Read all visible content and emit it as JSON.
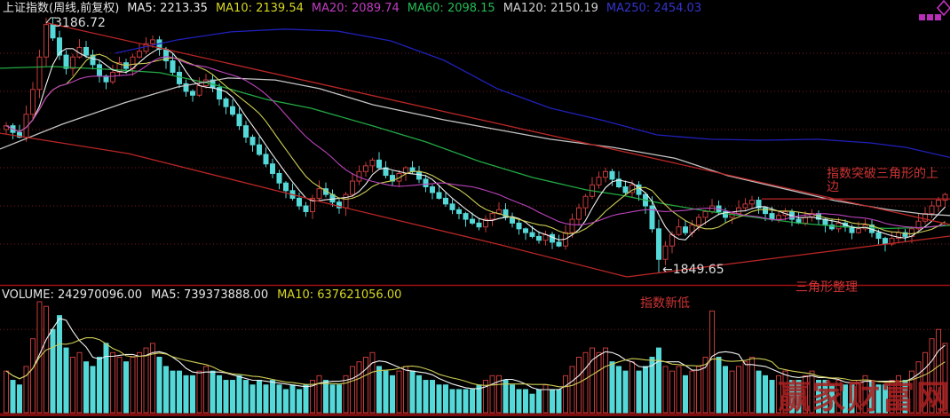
{
  "header": {
    "title": "上证指数(周线,前复权)",
    "ma_labels": [
      {
        "text": "MA5: 2213.35",
        "color": "#e6e6e6"
      },
      {
        "text": "MA10: 2139.54",
        "color": "#d6d622"
      },
      {
        "text": "MA20: 2089.74",
        "color": "#c03cc0"
      },
      {
        "text": "MA60: 2098.15",
        "color": "#22bb55"
      },
      {
        "text": "MA120: 2150.19",
        "color": "#cfcfcf"
      },
      {
        "text": "MA250: 2454.03",
        "color": "#3434cc"
      }
    ]
  },
  "volume_header": {
    "items": [
      {
        "text": "VOLUME: 242970096.00",
        "color": "#e6e6e6"
      },
      {
        "text": "MA5: 739373888.00",
        "color": "#e6e6e6"
      },
      {
        "text": "MA10: 637621056.00",
        "color": "#d6d622"
      }
    ]
  },
  "labels": {
    "peak": {
      "text": "3186.72"
    },
    "low": {
      "text": "←1849.65"
    }
  },
  "annotations": {
    "breakout": {
      "text": "指数突破三角形的上边"
    },
    "triangle": {
      "text": "三角形整理"
    },
    "new_low": {
      "text": "指数新低"
    }
  },
  "watermark": {
    "text": "赢家财富网"
  },
  "colors": {
    "up": "#c43a3a",
    "down": "#55d8d8",
    "white_ma": "#f0f0f0",
    "yellow_ma": "#cccc55",
    "magenta_ma": "#bb44bb",
    "green_ma": "#22aa44",
    "gray_ma": "#c4c4c4",
    "blue_ma": "#2020bb",
    "trend": "#bb2626",
    "grid": "#7a1a1a",
    "separator": "#a01010",
    "axis_bar": "#7a0d0d",
    "logo": "#cc33cc"
  },
  "chart_data": {
    "type": "candlestick+volume",
    "title": "上证指数(周线,前复权)",
    "legend": [
      "MA5",
      "MA10",
      "MA20",
      "MA60",
      "MA120",
      "MA250"
    ],
    "grid": "dotted horizontal",
    "price_axis": {
      "top_value": 3195,
      "bottom_value": 1777,
      "gridline_prices": [
        3000,
        2800,
        2600,
        2400,
        2200,
        2000
      ]
    },
    "key_points": [
      {
        "index": 6,
        "high": 3186.72,
        "label": "3186.72"
      },
      {
        "index": 98,
        "low": 1849.65,
        "label": "←1849.65"
      }
    ],
    "closes": [
      2620,
      2585,
      2560,
      2680,
      2810,
      2980,
      3150,
      3080,
      2990,
      2920,
      2980,
      3030,
      2990,
      2940,
      2880,
      2850,
      2900,
      2950,
      2920,
      2980,
      3010,
      3050,
      3070,
      3020,
      2960,
      2900,
      2840,
      2800,
      2780,
      2830,
      2860,
      2820,
      2760,
      2720,
      2680,
      2620,
      2560,
      2520,
      2470,
      2420,
      2370,
      2320,
      2280,
      2240,
      2200,
      2170,
      2240,
      2290,
      2260,
      2220,
      2190,
      2260,
      2330,
      2380,
      2410,
      2440,
      2400,
      2360,
      2330,
      2370,
      2400,
      2380,
      2340,
      2300,
      2270,
      2240,
      2210,
      2180,
      2160,
      2130,
      2110,
      2090,
      2130,
      2160,
      2180,
      2140,
      2110,
      2080,
      2060,
      2040,
      2020,
      2050,
      2010,
      1990,
      2060,
      2130,
      2190,
      2250,
      2310,
      2350,
      2380,
      2340,
      2300,
      2270,
      2310,
      2260,
      2200,
      2080,
      1920,
      1990,
      2050,
      2090,
      2060,
      2100,
      2140,
      2170,
      2200,
      2170,
      2140,
      2160,
      2190,
      2210,
      2230,
      2190,
      2160,
      2130,
      2150,
      2170,
      2130,
      2110,
      2140,
      2160,
      2130,
      2100,
      2080,
      2110,
      2090,
      2060,
      2080,
      2100,
      2060,
      2030,
      2000,
      2030,
      2060,
      2040,
      2080,
      2120,
      2160,
      2200,
      2230,
      2260
    ],
    "computed_ma": [
      {
        "name": "MA5",
        "window": 5,
        "color_key": "white_ma"
      },
      {
        "name": "MA10",
        "window": 10,
        "color_key": "yellow_ma"
      },
      {
        "name": "MA20",
        "window": 20,
        "color_key": "magenta_ma"
      }
    ],
    "ma_series": [
      {
        "name": "MA60",
        "color_key": "green_ma",
        "anchors": [
          [
            0,
            2921
          ],
          [
            60,
            2930
          ],
          [
            120,
            2916
          ],
          [
            180,
            2898
          ],
          [
            240,
            2837
          ],
          [
            300,
            2758
          ],
          [
            350,
            2712
          ],
          [
            420,
            2619
          ],
          [
            480,
            2535
          ],
          [
            540,
            2433
          ],
          [
            600,
            2349
          ],
          [
            660,
            2284
          ],
          [
            700,
            2256
          ],
          [
            750,
            2209
          ],
          [
            800,
            2170
          ],
          [
            850,
            2140
          ],
          [
            900,
            2110
          ],
          [
            950,
            2090
          ],
          [
            1000,
            2082
          ],
          [
            1035,
            2086
          ],
          [
            1070,
            2098
          ]
        ]
      },
      {
        "name": "MA120",
        "color_key": "gray_ma",
        "anchors": [
          [
            0,
            2498
          ],
          [
            70,
            2628
          ],
          [
            140,
            2740
          ],
          [
            200,
            2823
          ],
          [
            257,
            2870
          ],
          [
            310,
            2860
          ],
          [
            360,
            2814
          ],
          [
            420,
            2730
          ],
          [
            500,
            2651
          ],
          [
            560,
            2600
          ],
          [
            620,
            2549
          ],
          [
            690,
            2507
          ],
          [
            760,
            2450
          ],
          [
            820,
            2358
          ],
          [
            880,
            2293
          ],
          [
            940,
            2228
          ],
          [
            1000,
            2181
          ],
          [
            1040,
            2158
          ],
          [
            1070,
            2150
          ]
        ]
      },
      {
        "name": "MA250",
        "color_key": "blue_ma",
        "anchors": [
          [
            130,
            3000
          ],
          [
            200,
            3070
          ],
          [
            260,
            3112
          ],
          [
            320,
            3126
          ],
          [
            380,
            3116
          ],
          [
            440,
            3065
          ],
          [
            500,
            2963
          ],
          [
            560,
            2814
          ],
          [
            620,
            2712
          ],
          [
            680,
            2647
          ],
          [
            740,
            2572
          ],
          [
            800,
            2549
          ],
          [
            860,
            2544
          ],
          [
            920,
            2549
          ],
          [
            980,
            2530
          ],
          [
            1020,
            2507
          ],
          [
            1070,
            2454
          ]
        ]
      }
    ],
    "trend_lines": [
      {
        "name": "triangle-upper-edge",
        "points_xprice": [
          [
            52,
            3160
          ],
          [
            1070,
            2102
          ]
        ]
      },
      {
        "name": "lower-channel-line",
        "points_xprice": [
          [
            0,
            2581
          ],
          [
            145,
            2474
          ],
          [
            380,
            2200
          ],
          [
            560,
            2000
          ],
          [
            706,
            1828
          ]
        ]
      },
      {
        "name": "triangle-lower-edge",
        "points_xprice": [
          [
            706,
            1828
          ],
          [
            1070,
            2042
          ]
        ]
      },
      {
        "name": "breakout-level-line",
        "points_xprice": [
          [
            858,
            2237
          ],
          [
            1070,
            2237
          ]
        ]
      }
    ],
    "volume_axis": {
      "rel_max": 24,
      "gridlines_rel": [
        18
      ]
    },
    "volumes_rel": [
      9,
      7,
      6,
      10,
      16,
      24,
      23,
      18,
      21,
      14,
      12,
      13,
      11,
      10,
      12,
      15,
      13,
      12,
      11,
      12,
      13,
      14,
      15,
      12,
      10,
      9,
      9,
      8,
      8,
      9,
      10,
      9,
      8,
      7,
      7,
      8,
      7,
      6,
      7,
      6,
      7,
      6,
      5,
      6,
      5,
      6,
      7,
      8,
      7,
      6,
      6,
      8,
      10,
      11,
      12,
      13,
      10,
      9,
      8,
      9,
      10,
      9,
      8,
      7,
      7,
      6,
      6,
      5,
      5,
      5,
      5,
      6,
      7,
      8,
      8,
      7,
      6,
      5,
      5,
      4,
      5,
      6,
      5,
      5,
      8,
      10,
      12,
      13,
      14,
      13,
      14,
      11,
      10,
      9,
      11,
      9,
      10,
      12,
      14,
      10,
      9,
      10,
      8,
      9,
      10,
      12,
      22,
      12,
      10,
      9,
      10,
      11,
      12,
      9,
      8,
      7,
      8,
      9,
      7,
      7,
      8,
      9,
      7,
      7,
      6,
      7,
      6,
      6,
      7,
      8,
      7,
      6,
      6,
      7,
      8,
      7,
      9,
      11,
      13,
      16,
      18,
      15
    ],
    "volume_ma": [
      {
        "name": "MA5",
        "window": 5,
        "color_key": "white_ma"
      },
      {
        "name": "MA10",
        "window": 10,
        "color_key": "yellow_ma"
      }
    ]
  }
}
